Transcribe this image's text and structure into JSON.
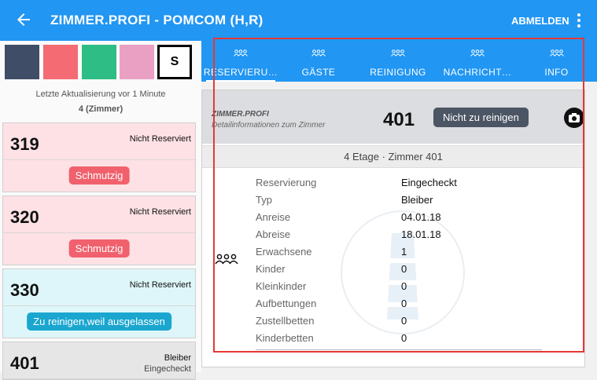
{
  "appbar": {
    "title": "ZIMMER.PROFI - POMCOM (H,R)",
    "logout": "ABMELDEN"
  },
  "filters": {
    "colors": [
      "#3f4d66",
      "#f46b73",
      "#2ebd85",
      "#eaa0c3"
    ],
    "s_label": "S"
  },
  "update": {
    "line1": "Letzte Aktualisierung vor 1 Minute",
    "line2": "4 (Zimmer)"
  },
  "rooms": [
    {
      "number": "319",
      "status": "Nicht Reserviert",
      "status2": "",
      "button": "Schmutzig",
      "button_color": "#f0616d"
    },
    {
      "number": "320",
      "status": "Nicht Reserviert",
      "status2": "",
      "button": "Schmutzig",
      "button_color": "#f0616d"
    },
    {
      "number": "330",
      "status": "Nicht Reserviert",
      "status2": "",
      "button": "Zu reinigen,weil ausgelassen",
      "button_color": "#1aa6cf"
    },
    {
      "number": "401",
      "status": "Bleiber",
      "status2": "Eingecheckt",
      "button": "",
      "button_color": ""
    }
  ],
  "tabs": [
    {
      "label": "RESERVIERU…",
      "icon": "people-icon",
      "active": true
    },
    {
      "label": "GÄSTE",
      "icon": "people-icon",
      "active": false
    },
    {
      "label": "REINIGUNG",
      "icon": "people-icon",
      "active": false
    },
    {
      "label": "NACHRICHT…",
      "icon": "people-icon",
      "active": false
    },
    {
      "label": "INFO",
      "icon": "people-icon",
      "active": false
    }
  ],
  "detail": {
    "brand": "ZIMMER.PROFI",
    "brand_sub": "Detailinformationen zum Zimmer",
    "room": "401",
    "status_button": "Nicht zu reinigen",
    "subheader": "4  Etage · Zimmer 401",
    "rows": [
      {
        "k": "Reservierung",
        "v": "Eingecheckt"
      },
      {
        "k": "Typ",
        "v": "Bleiber"
      },
      {
        "k": "Anreise",
        "v": "04.01.18"
      },
      {
        "k": "Abreise",
        "v": "18.01.18"
      },
      {
        "k": "Erwachsene",
        "v": "1"
      },
      {
        "k": "Kinder",
        "v": "0"
      },
      {
        "k": "Kleinkinder",
        "v": "0"
      },
      {
        "k": "Aufbettungen",
        "v": "0"
      },
      {
        "k": "Zustellbetten",
        "v": "0"
      },
      {
        "k": "Kinderbetten",
        "v": "0"
      }
    ]
  },
  "colors": {
    "primary": "#2196f3",
    "highlight": "#e53935"
  }
}
